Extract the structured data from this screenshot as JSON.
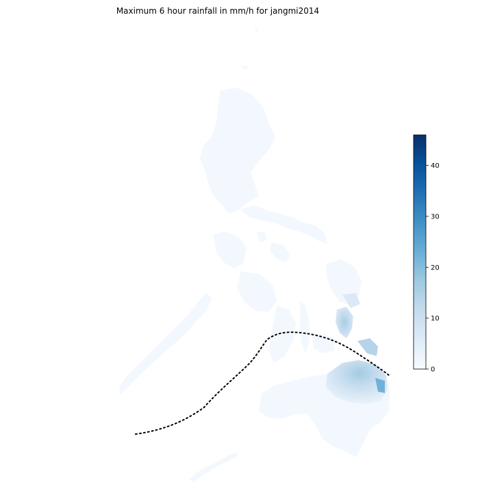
{
  "title": "Maximum 6 hour rainfall in mm/h for jangmi2014",
  "colorbar": {
    "min": 0,
    "max": 46,
    "ticks": [
      {
        "value": 0,
        "label": "0"
      },
      {
        "value": 10,
        "label": "10"
      },
      {
        "value": 20,
        "label": "20"
      },
      {
        "value": 30,
        "label": "30"
      },
      {
        "value": 40,
        "label": "40"
      }
    ],
    "colormap": [
      "#f7fbff",
      "#deebf7",
      "#c6dbef",
      "#9ecae1",
      "#6baed6",
      "#4292c6",
      "#2171b5",
      "#08519c",
      "#08306b"
    ]
  },
  "track": {
    "style": "dotted",
    "color": "#000000"
  },
  "regions": {
    "base_color": "#f3f8fe",
    "high_rain_color": "#a6cde4",
    "peak_rain_color": "#6fb1d8"
  }
}
